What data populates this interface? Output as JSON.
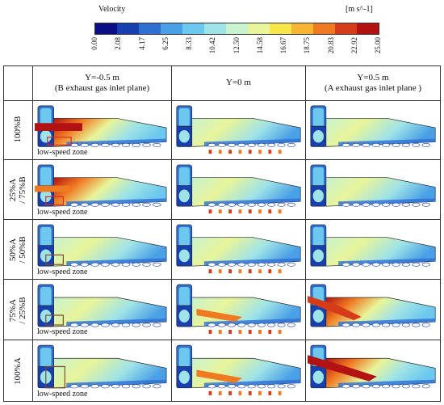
{
  "colorbar": {
    "title": "Velocity",
    "unit": "[m s^-1]",
    "ticks": [
      "0.00",
      "2.08",
      "4.17",
      "6.25",
      "8.33",
      "10.42",
      "12.50",
      "14.58",
      "16.67",
      "18.75",
      "20.83",
      "22.92",
      "25.00"
    ],
    "colors": [
      "#0a0f86",
      "#173fb0",
      "#2f6fd2",
      "#4aa0e6",
      "#6cc8ee",
      "#9ee3e8",
      "#c8f2d0",
      "#e8f59a",
      "#f7e64a",
      "#f8b531",
      "#f07a22",
      "#d63b1a",
      "#b21212"
    ]
  },
  "columns": [
    {
      "line1": "Y=-0.5 m",
      "line2": "(B exhaust gas inlet plane)"
    },
    {
      "line1": "Y=0 m",
      "line2": ""
    },
    {
      "line1": "Y=0.5 m",
      "line2": "(A exhaust gas inlet plane )"
    }
  ],
  "rows": [
    {
      "label": "100%B",
      "note": "low-speed zone"
    },
    {
      "label": "25%A\n/ 75%B",
      "note": "low-speed zone"
    },
    {
      "label": "50%A\n/ 50%B",
      "note": "low-speed zone"
    },
    {
      "label": "75%A\n/ 25%B",
      "note": "low-speed zone"
    },
    {
      "label": "100%A",
      "note": "low-speed zone"
    }
  ]
}
